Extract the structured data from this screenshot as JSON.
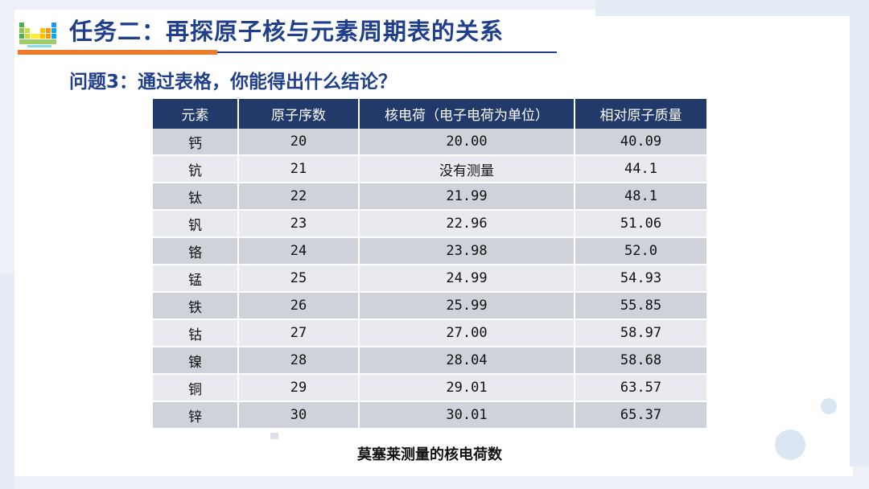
{
  "title": "任务二：再探原子核与元素周期表的关系",
  "question": "问题3：通过表格，你能得出什么结论？",
  "table": {
    "headers": [
      "元素",
      "原子序数",
      "核电荷（电子电荷为单位）",
      "相对原子质量"
    ],
    "rows": [
      [
        "钙",
        "20",
        "20.00",
        "40.09"
      ],
      [
        "钪",
        "21",
        "没有测量",
        "44.1"
      ],
      [
        "钛",
        "22",
        "21.99",
        "48.1"
      ],
      [
        "钒",
        "23",
        "22.96",
        "51.06"
      ],
      [
        "铬",
        "24",
        "23.98",
        "52.0"
      ],
      [
        "锰",
        "25",
        "24.99",
        "54.93"
      ],
      [
        "铁",
        "26",
        "25.99",
        "55.85"
      ],
      [
        "钴",
        "27",
        "27.00",
        "58.97"
      ],
      [
        "镍",
        "28",
        "28.04",
        "58.68"
      ],
      [
        "铜",
        "29",
        "29.01",
        "63.57"
      ],
      [
        "锌",
        "30",
        "30.01",
        "65.37"
      ]
    ]
  },
  "caption": "莫塞莱测量的核电荷数",
  "colors": {
    "title": "#1f3e8c",
    "accent": "#ec7b2c",
    "header_bg": "#223a6a"
  },
  "icons": {
    "logo": "periodic-table-icon"
  }
}
